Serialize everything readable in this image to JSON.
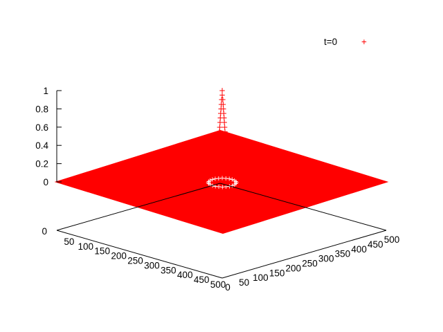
{
  "chart_data": {
    "type": "scatter",
    "title": "",
    "legend": {
      "entries": [
        {
          "label": "t=0",
          "marker": "+"
        }
      ],
      "position": "top-right"
    },
    "series": [
      {
        "name": "t=0",
        "color": "#ff0000",
        "marker": "+",
        "description_values": {
          "surface_value": 0,
          "peak": {
            "x": 250,
            "y": 250,
            "z": 1.0
          },
          "peak_radius": 10
        }
      }
    ],
    "x_axis": {
      "range": [
        0,
        500
      ],
      "ticks": [
        "0",
        "50",
        "100",
        "150",
        "200",
        "250",
        "300",
        "350",
        "400",
        "450",
        "500"
      ]
    },
    "y_axis": {
      "range": [
        0,
        500
      ],
      "ticks": [
        "0",
        "50",
        "100",
        "150",
        "200",
        "250",
        "300",
        "350",
        "400",
        "450",
        "500"
      ]
    },
    "z_axis": {
      "range": [
        0,
        1
      ],
      "ticks": [
        "0",
        "0.2",
        "0.4",
        "0.6",
        "0.8",
        "1"
      ],
      "base_label": "0"
    },
    "grid": false
  }
}
